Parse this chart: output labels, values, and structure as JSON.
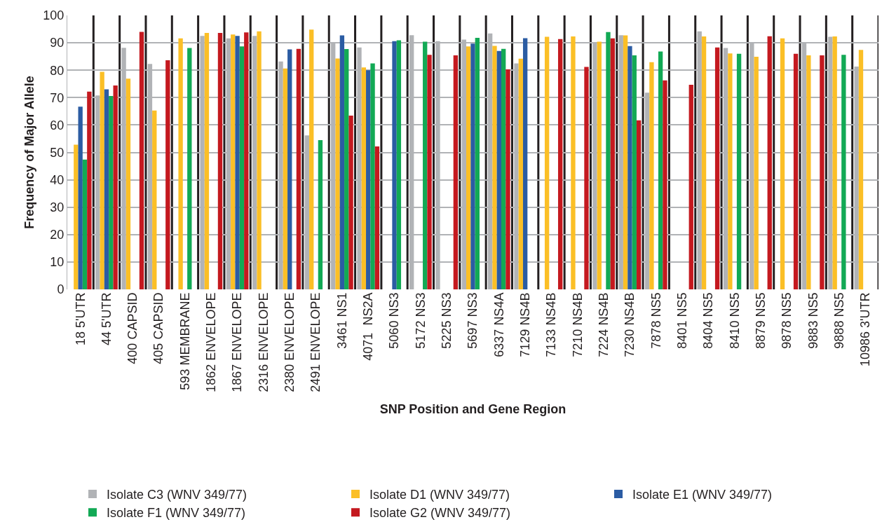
{
  "chart_data": {
    "type": "bar",
    "xlabel": "SNP Position and Gene Region",
    "ylabel": "Frequency of Major Allele",
    "categories": [
      "18 5'UTR",
      "44 5'UTR",
      "400 CAPSID",
      "405 CAPSID",
      "593 MEMBRANE",
      "1862 ENVELOPE",
      "1867 ENVELOPE",
      "2316 ENVELOPE",
      "2380 ENVELOPE",
      "2491 ENVELOPE",
      "3461 NS1",
      "4071  NS2A",
      "5060 NS3",
      "5172 NS3",
      "5225 NS3",
      "5697 NS3",
      "6337 NS4A",
      "7129 NS4B",
      "7133 NS4B",
      "7210 NS4B",
      "7224 NS4B",
      "7230 NS4B",
      "7878 NS5",
      "8401 NS5",
      "8404 NS5",
      "8410 NS5",
      "8879 NS5",
      "9878 NS5",
      "9883 NS5",
      "9888 NS5",
      "10986 3'UTR"
    ],
    "series": [
      {
        "name": "Isolate C3 (WNV 349/77)",
        "color": "#b1b3b6",
        "values": [
          null,
          70.8,
          88.2,
          82.3,
          null,
          92.5,
          91.6,
          92.5,
          83.2,
          56.2,
          89.8,
          88.3,
          null,
          92.8,
          90.6,
          91.2,
          93.4,
          82.5,
          null,
          null,
          90.2,
          92.8,
          71.8,
          null,
          94.2,
          88.1,
          89.8,
          null,
          90.0,
          92.2,
          81.3
        ]
      },
      {
        "name": "Isolate D1 (WNV 349/77)",
        "color": "#fbbf26",
        "values": [
          52.8,
          79.4,
          76.9,
          65.3,
          91.6,
          93.6,
          93.0,
          94.2,
          80.6,
          94.8,
          84.3,
          81.0,
          null,
          null,
          null,
          88.7,
          88.9,
          84.2,
          92.2,
          92.3,
          90.4,
          92.7,
          82.9,
          null,
          92.3,
          86.1,
          84.9,
          91.6,
          85.4,
          92.3,
          87.4
        ]
      },
      {
        "name": "Isolate E1 (WNV 349/77)",
        "color": "#2b5ca3",
        "values": [
          66.7,
          73.0,
          null,
          null,
          null,
          null,
          92.5,
          null,
          87.6,
          null,
          92.7,
          80.0,
          90.6,
          null,
          null,
          89.7,
          87.0,
          91.7,
          null,
          null,
          null,
          88.8,
          null,
          null,
          null,
          null,
          null,
          null,
          null,
          null,
          null
        ]
      },
      {
        "name": "Isolate F1 (WNV 349/77)",
        "color": "#12a955",
        "values": [
          47.4,
          70.6,
          null,
          null,
          88.1,
          null,
          88.7,
          null,
          null,
          54.5,
          87.7,
          82.5,
          90.9,
          90.4,
          null,
          91.8,
          87.8,
          null,
          null,
          null,
          93.9,
          85.4,
          86.8,
          null,
          null,
          86.0,
          null,
          null,
          null,
          85.6,
          null
        ]
      },
      {
        "name": "Isolate G2 (WNV 349/77)",
        "color": "#c4191f",
        "values": [
          72.2,
          74.4,
          94.0,
          83.6,
          null,
          93.6,
          93.8,
          null,
          87.8,
          null,
          63.4,
          52.2,
          null,
          85.6,
          85.4,
          null,
          80.3,
          null,
          91.4,
          81.2,
          91.6,
          61.7,
          76.3,
          74.7,
          88.3,
          null,
          92.4,
          86.0,
          85.4,
          null,
          null
        ]
      }
    ],
    "ylim": [
      0,
      100
    ],
    "yticks": [
      0,
      10,
      20,
      30,
      40,
      50,
      60,
      70,
      80,
      90,
      100
    ],
    "grid": true,
    "legend": "bottom"
  }
}
